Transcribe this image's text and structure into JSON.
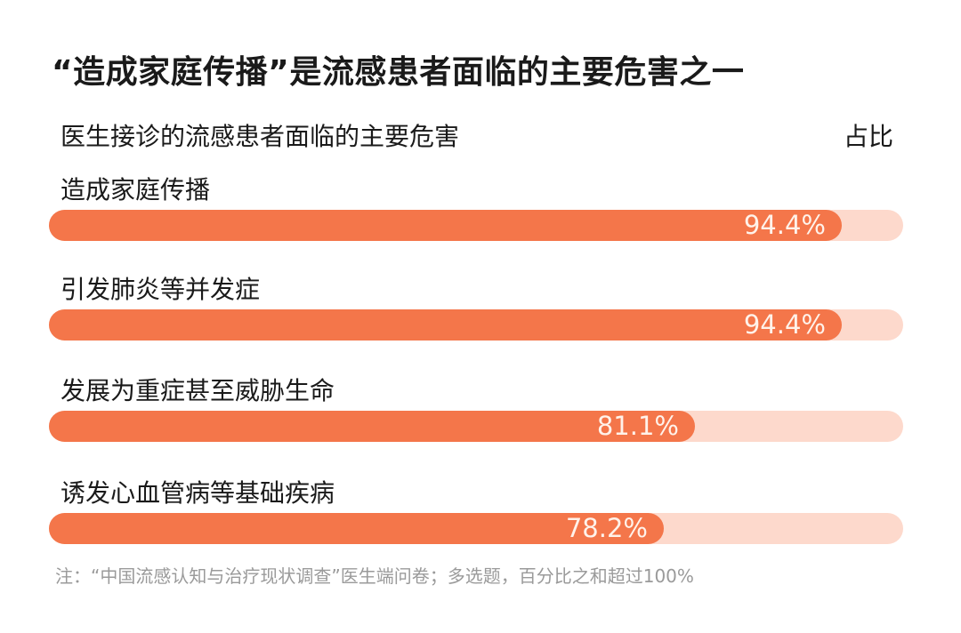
{
  "chart_data": {
    "type": "bar",
    "orientation": "horizontal",
    "title": "“造成家庭传播”是流感患者面临的主要危害之一",
    "category_header": "医生接诊的流感患者面临的主要危害",
    "value_header": "占比",
    "categories": [
      "造成家庭传播",
      "引发肺炎等并发症",
      "发展为重症甚至威胁生命",
      "诱发心血管病等基础疾病"
    ],
    "values": [
      94.4,
      94.4,
      81.1,
      78.2
    ],
    "labels": [
      "94.4%",
      "94.4%",
      "81.1%",
      "78.2%"
    ],
    "unit": "%",
    "note": "注：“中国流感认知与治疗现状调查”医生端问卷；多选题，百分比之和超过100%",
    "colors": {
      "fill": "#f4764a",
      "track": "#fdd9cc"
    }
  }
}
